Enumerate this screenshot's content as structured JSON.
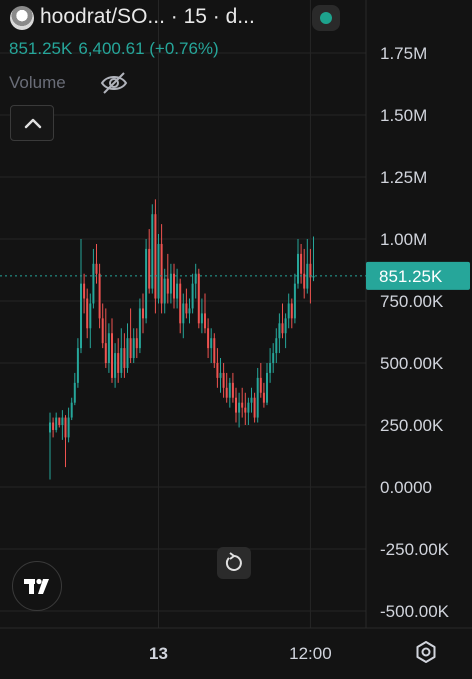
{
  "header": {
    "symbol": "hoodrat/SO...",
    "interval": "· 15 · d..."
  },
  "legend": {
    "price": "851.25K",
    "change_text": "6,400.61 (+0.76%)",
    "volume_label": "Volume"
  },
  "colors": {
    "background": "#131313",
    "up": "#26a69a",
    "down": "#ef5350",
    "grid": "#262626",
    "price_label_bg": "#26a69a",
    "axis_text": "#d1d4dc"
  },
  "icons": {
    "avatar": "avatar-icon",
    "live": "live-dot-icon",
    "visibility": "eye-off-icon",
    "collapse": "chevron-up-icon",
    "reset": "reset-icon",
    "logo": "tradingview-logo-icon",
    "settings": "gear-icon"
  },
  "chart_data": {
    "type": "candlestick",
    "price_axis": {
      "ticks": [
        {
          "value": 1750000,
          "label": "1.75M"
        },
        {
          "value": 1500000,
          "label": "1.50M"
        },
        {
          "value": 1250000,
          "label": "1.25M"
        },
        {
          "value": 1000000,
          "label": "1.00M"
        },
        {
          "value": 750000,
          "label": "750.00K"
        },
        {
          "value": 500000,
          "label": "500.00K"
        },
        {
          "value": 250000,
          "label": "250.00K"
        },
        {
          "value": 0,
          "label": "0.0000"
        },
        {
          "value": -250000,
          "label": "-250.00K"
        },
        {
          "value": -500000,
          "label": "-500.00K"
        }
      ],
      "range": [
        -560000,
        1890000
      ]
    },
    "time_axis": {
      "ticks": [
        {
          "index": 35,
          "label": "13"
        },
        {
          "index": 84,
          "label": "12:00"
        }
      ]
    },
    "current_price": {
      "value": 851250,
      "label": "851.25K"
    },
    "grid": true,
    "candles": [
      [
        220000,
        300000,
        30000,
        260000
      ],
      [
        260000,
        280000,
        200000,
        230000
      ],
      [
        230000,
        300000,
        220000,
        280000
      ],
      [
        280000,
        280000,
        240000,
        250000
      ],
      [
        250000,
        310000,
        190000,
        280000
      ],
      [
        280000,
        290000,
        80000,
        200000
      ],
      [
        200000,
        320000,
        180000,
        280000
      ],
      [
        280000,
        360000,
        270000,
        340000
      ],
      [
        340000,
        460000,
        330000,
        420000
      ],
      [
        420000,
        600000,
        400000,
        560000
      ],
      [
        560000,
        1000000,
        540000,
        820000
      ],
      [
        820000,
        860000,
        700000,
        760000
      ],
      [
        760000,
        800000,
        600000,
        640000
      ],
      [
        640000,
        780000,
        560000,
        740000
      ],
      [
        740000,
        960000,
        720000,
        900000
      ],
      [
        900000,
        980000,
        820000,
        860000
      ],
      [
        860000,
        900000,
        640000,
        680000
      ],
      [
        680000,
        740000,
        560000,
        580000
      ],
      [
        580000,
        720000,
        480000,
        500000
      ],
      [
        500000,
        660000,
        460000,
        620000
      ],
      [
        620000,
        680000,
        420000,
        440000
      ],
      [
        440000,
        580000,
        400000,
        540000
      ],
      [
        540000,
        600000,
        420000,
        460000
      ],
      [
        460000,
        640000,
        440000,
        560000
      ],
      [
        560000,
        620000,
        440000,
        480000
      ],
      [
        480000,
        660000,
        460000,
        600000
      ],
      [
        600000,
        720000,
        500000,
        520000
      ],
      [
        520000,
        640000,
        500000,
        600000
      ],
      [
        600000,
        640000,
        520000,
        560000
      ],
      [
        560000,
        760000,
        540000,
        720000
      ],
      [
        720000,
        780000,
        620000,
        680000
      ],
      [
        680000,
        1000000,
        660000,
        960000
      ],
      [
        960000,
        1040000,
        780000,
        800000
      ],
      [
        800000,
        1140000,
        780000,
        1100000
      ],
      [
        1100000,
        1160000,
        700000,
        760000
      ],
      [
        760000,
        1020000,
        740000,
        980000
      ],
      [
        980000,
        1060000,
        700000,
        740000
      ],
      [
        740000,
        880000,
        700000,
        840000
      ],
      [
        840000,
        940000,
        740000,
        780000
      ],
      [
        780000,
        900000,
        740000,
        860000
      ],
      [
        860000,
        900000,
        720000,
        760000
      ],
      [
        760000,
        880000,
        720000,
        820000
      ],
      [
        820000,
        840000,
        620000,
        660000
      ],
      [
        660000,
        780000,
        600000,
        740000
      ],
      [
        740000,
        800000,
        680000,
        700000
      ],
      [
        700000,
        760000,
        660000,
        720000
      ],
      [
        720000,
        860000,
        700000,
        820000
      ],
      [
        820000,
        900000,
        760000,
        860000
      ],
      [
        860000,
        880000,
        640000,
        660000
      ],
      [
        660000,
        760000,
        620000,
        700000
      ],
      [
        700000,
        780000,
        620000,
        640000
      ],
      [
        640000,
        680000,
        520000,
        560000
      ],
      [
        560000,
        640000,
        500000,
        600000
      ],
      [
        600000,
        620000,
        480000,
        500000
      ],
      [
        500000,
        560000,
        400000,
        440000
      ],
      [
        440000,
        520000,
        380000,
        460000
      ],
      [
        460000,
        500000,
        360000,
        400000
      ],
      [
        400000,
        460000,
        340000,
        360000
      ],
      [
        360000,
        440000,
        320000,
        420000
      ],
      [
        420000,
        460000,
        340000,
        360000
      ],
      [
        360000,
        400000,
        260000,
        300000
      ],
      [
        300000,
        380000,
        240000,
        340000
      ],
      [
        340000,
        400000,
        280000,
        320000
      ],
      [
        320000,
        380000,
        250000,
        300000
      ],
      [
        300000,
        360000,
        250000,
        340000
      ],
      [
        340000,
        400000,
        300000,
        360000
      ],
      [
        360000,
        380000,
        260000,
        280000
      ],
      [
        280000,
        480000,
        260000,
        440000
      ],
      [
        440000,
        500000,
        360000,
        380000
      ],
      [
        380000,
        420000,
        320000,
        340000
      ],
      [
        340000,
        500000,
        330000,
        460000
      ],
      [
        460000,
        560000,
        420000,
        500000
      ],
      [
        500000,
        580000,
        460000,
        540000
      ],
      [
        540000,
        640000,
        500000,
        600000
      ],
      [
        600000,
        700000,
        540000,
        660000
      ],
      [
        660000,
        740000,
        600000,
        620000
      ],
      [
        620000,
        700000,
        560000,
        680000
      ],
      [
        680000,
        780000,
        640000,
        740000
      ],
      [
        740000,
        760000,
        640000,
        680000
      ],
      [
        680000,
        860000,
        660000,
        820000
      ],
      [
        820000,
        1000000,
        800000,
        940000
      ],
      [
        940000,
        980000,
        820000,
        860000
      ],
      [
        860000,
        960000,
        760000,
        800000
      ],
      [
        800000,
        1000000,
        780000,
        900000
      ],
      [
        900000,
        960000,
        740000,
        845000
      ],
      [
        845000,
        1010000,
        830000,
        851250
      ]
    ]
  }
}
